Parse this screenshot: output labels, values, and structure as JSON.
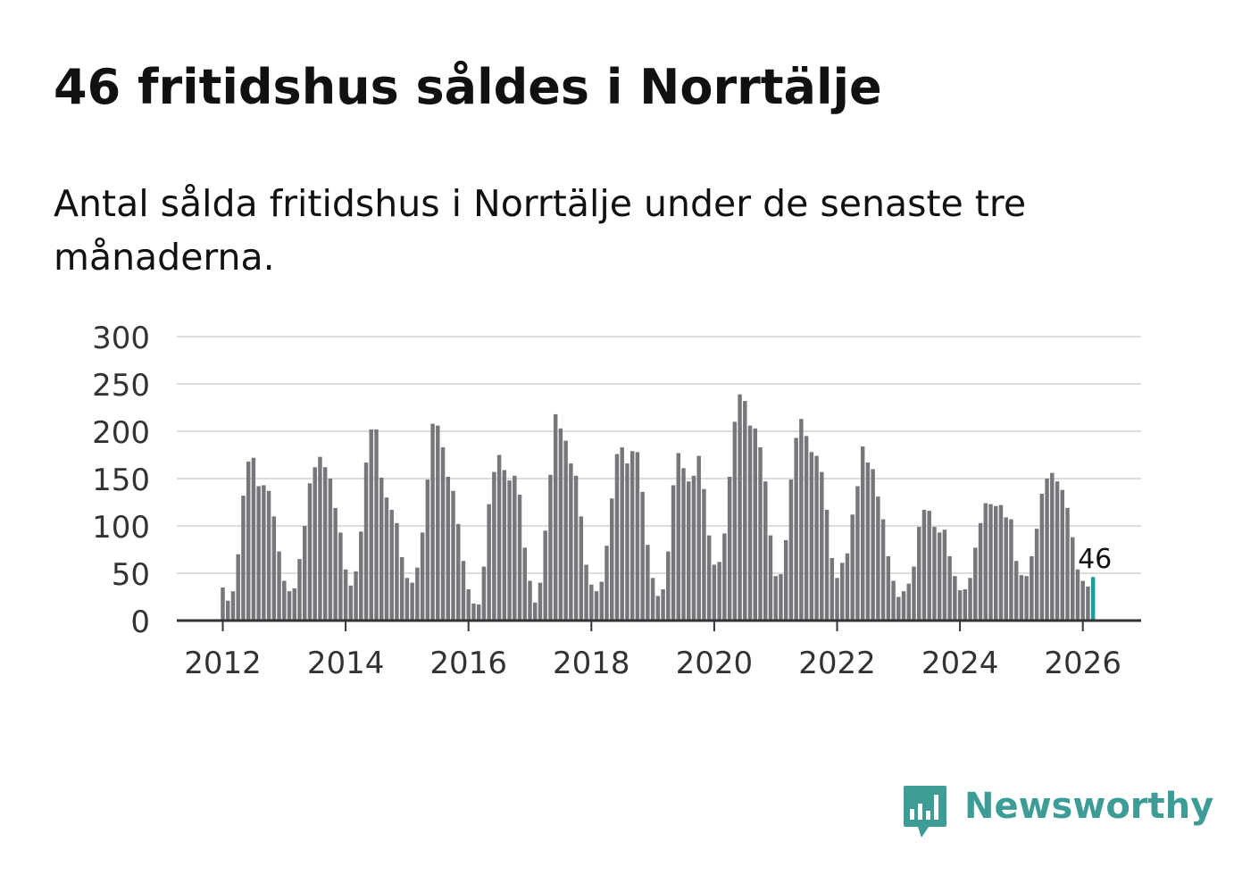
{
  "header": {
    "title": "46 fritidshus såldes i Norrtälje",
    "subtitle": "Antal sålda fritidshus i Norrtälje under de senaste tre månaderna."
  },
  "brand": {
    "name": "Newsworthy",
    "color": "#3d9c96",
    "icon": "bar-chart-speech-bubble-icon"
  },
  "colors": {
    "bar": "#77767b",
    "highlight": "#16a09a",
    "grid": "#dcdcdc",
    "axis": "#333333"
  },
  "chart_data": {
    "type": "bar",
    "x_start": "2012-01",
    "x_end": "2026-03",
    "ylim": [
      0,
      300
    ],
    "yticks": [
      "0",
      "50",
      "100",
      "150",
      "200",
      "250",
      "300"
    ],
    "xticks": [
      "2012",
      "2014",
      "2016",
      "2018",
      "2020",
      "2022",
      "2024",
      "2026"
    ],
    "grid": true,
    "highlight_label": "46",
    "values": [
      35,
      21,
      31,
      70,
      132,
      168,
      172,
      142,
      143,
      137,
      110,
      73,
      42,
      31,
      34,
      65,
      100,
      145,
      162,
      173,
      162,
      150,
      119,
      93,
      54,
      37,
      52,
      94,
      167,
      202,
      202,
      151,
      130,
      117,
      103,
      67,
      45,
      40,
      56,
      93,
      149,
      208,
      206,
      183,
      152,
      137,
      102,
      63,
      33,
      18,
      17,
      57,
      123,
      157,
      175,
      159,
      148,
      153,
      133,
      77,
      42,
      19,
      40,
      95,
      154,
      218,
      203,
      190,
      166,
      153,
      110,
      59,
      38,
      31,
      41,
      79,
      129,
      176,
      183,
      166,
      179,
      178,
      136,
      80,
      45,
      26,
      33,
      73,
      143,
      177,
      161,
      147,
      153,
      174,
      139,
      90,
      59,
      62,
      92,
      152,
      210,
      239,
      232,
      206,
      203,
      183,
      147,
      90,
      47,
      49,
      85,
      149,
      193,
      213,
      195,
      178,
      174,
      157,
      117,
      66,
      45,
      61,
      71,
      112,
      142,
      184,
      167,
      160,
      131,
      107,
      68,
      42,
      25,
      31,
      39,
      57,
      99,
      117,
      116,
      99,
      93,
      96,
      68,
      47,
      32,
      33,
      45,
      77,
      103,
      124,
      123,
      121,
      122,
      109,
      107,
      63,
      48,
      47,
      68,
      97,
      134,
      150,
      156,
      147,
      138,
      119,
      88,
      54,
      42,
      36,
      46
    ]
  }
}
